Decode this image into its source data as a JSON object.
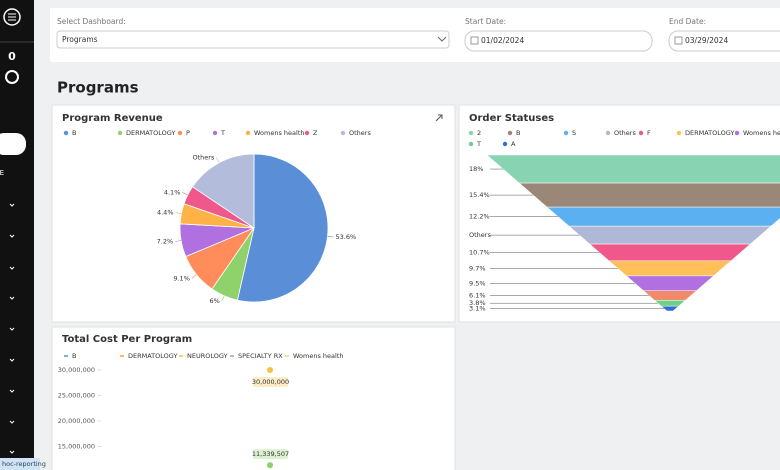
{
  "sidebar": {
    "counter": "0",
    "menu_item": "E",
    "status_link": "hoc-reporting"
  },
  "filters": {
    "dashboard_label": "Select Dashboard:",
    "dashboard_value": "Programs",
    "start_label": "Start Date:",
    "start_value": "01/02/2024",
    "end_label": "End Date:",
    "end_value": "03/29/2024"
  },
  "page_title": "Programs",
  "chart_data": [
    {
      "type": "pie",
      "title": "Program Revenue",
      "categories": [
        "B",
        "DERMATOLOGY",
        "P",
        "T",
        "Womens health",
        "Z",
        "Others"
      ],
      "values": [
        53.6,
        6,
        9.1,
        7.2,
        4.4,
        4.1,
        15.6
      ],
      "value_labels": [
        "53.6%",
        "6%",
        "9.1%",
        "7.2%",
        "4.4%",
        "4.1%",
        null
      ],
      "colors": [
        "#5a8fd8",
        "#8fd16a",
        "#ff8c5a",
        "#b070e0",
        "#ffb347",
        "#f0578a",
        "#b4bcdc"
      ]
    },
    {
      "type": "funnel",
      "title": "Order Statuses",
      "categories": [
        "2",
        "B",
        "S",
        "Others",
        "F",
        "DERMATOLOGY",
        "Womens health",
        null,
        "T",
        "A"
      ],
      "values": [
        18,
        15.4,
        12.2,
        11.5,
        10.7,
        9.7,
        9.5,
        6.1,
        3.8,
        3.1
      ],
      "value_labels": [
        "18%",
        "15.4%",
        "12.2%",
        null,
        "10.7%",
        "9.7%",
        "9.5%",
        "6.1%",
        "3.8%",
        "3.1%"
      ],
      "colors": [
        "#88d3b2",
        "#9b8778",
        "#5ab0f0",
        "#b0b8d8",
        "#f0578a",
        "#ffc05a",
        "#b070e0",
        "#f08a6a",
        "#6fd08a",
        "#2f6fd0"
      ]
    },
    {
      "type": "dot",
      "title": "Total Cost Per Program",
      "series": [
        {
          "name": "B",
          "color": "#5a8fd8"
        },
        {
          "name": "DERMATOLOGY",
          "color": "#ff9f40"
        },
        {
          "name": "NEUROLOGY",
          "color": "#f5c242"
        },
        {
          "name": "SPECIALTY RX",
          "color": "#9aa0b5"
        },
        {
          "name": "Womens health",
          "color": "#f5d76e"
        }
      ],
      "points": [
        {
          "value": 30000000,
          "label": "30,000,000",
          "color": "#f5c242"
        },
        {
          "value": 11339507,
          "label": "11,339,507",
          "color": "#8fd16a"
        }
      ],
      "ylim": [
        0,
        30000000
      ],
      "yticks": [
        {
          "value": 30000000,
          "label": "30,000,000"
        },
        {
          "value": 25000000,
          "label": "25,000,000"
        },
        {
          "value": 20000000,
          "label": "20,000,000"
        },
        {
          "value": 15000000,
          "label": "15,000,000"
        }
      ]
    }
  ]
}
